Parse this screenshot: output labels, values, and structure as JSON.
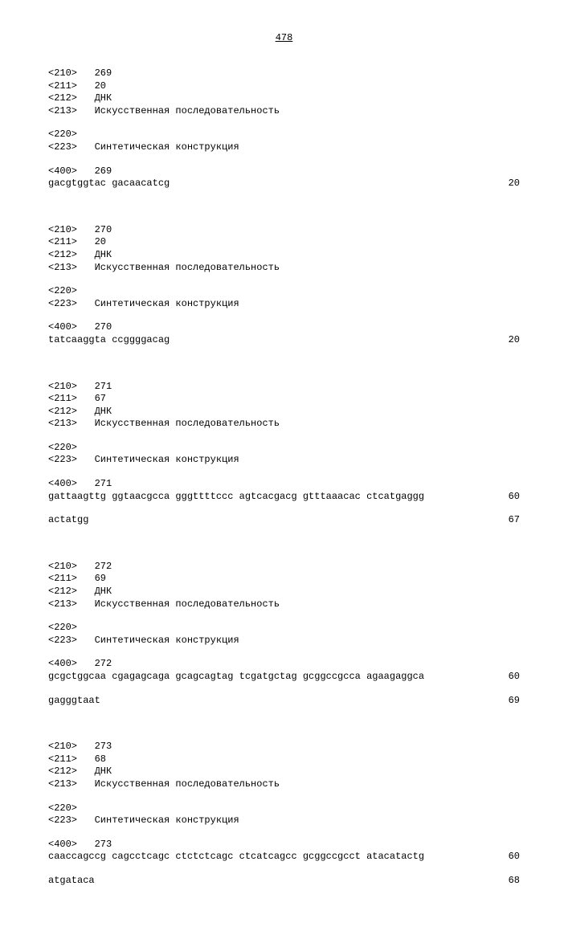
{
  "page_number": "478",
  "entries": [
    {
      "header": [
        {
          "tag": "<210>",
          "val": "269"
        },
        {
          "tag": "<211>",
          "val": "20"
        },
        {
          "tag": "<212>",
          "val": "ДНК"
        },
        {
          "tag": "<213>",
          "val": "Искусственная последовательность"
        }
      ],
      "feature": [
        {
          "tag": "<220>",
          "val": ""
        },
        {
          "tag": "<223>",
          "val": "Синтетическая конструкция"
        }
      ],
      "seq_header": {
        "tag": "<400>",
        "val": "269"
      },
      "seq_lines": [
        {
          "text": "gacgtggtac gacaacatcg",
          "count": "20"
        }
      ]
    },
    {
      "header": [
        {
          "tag": "<210>",
          "val": "270"
        },
        {
          "tag": "<211>",
          "val": "20"
        },
        {
          "tag": "<212>",
          "val": "ДНК"
        },
        {
          "tag": "<213>",
          "val": "Искусственная последовательность"
        }
      ],
      "feature": [
        {
          "tag": "<220>",
          "val": ""
        },
        {
          "tag": "<223>",
          "val": "Синтетическая конструкция"
        }
      ],
      "seq_header": {
        "tag": "<400>",
        "val": "270"
      },
      "seq_lines": [
        {
          "text": "tatcaaggta ccggggacag",
          "count": "20"
        }
      ]
    },
    {
      "header": [
        {
          "tag": "<210>",
          "val": "271"
        },
        {
          "tag": "<211>",
          "val": "67"
        },
        {
          "tag": "<212>",
          "val": "ДНК"
        },
        {
          "tag": "<213>",
          "val": "Искусственная последовательность"
        }
      ],
      "feature": [
        {
          "tag": "<220>",
          "val": ""
        },
        {
          "tag": "<223>",
          "val": "Синтетическая конструкция"
        }
      ],
      "seq_header": {
        "tag": "<400>",
        "val": "271"
      },
      "seq_lines": [
        {
          "text": "gattaagttg ggtaacgcca gggttttccc agtcacgacg gtttaaacac ctcatgaggg",
          "count": "60"
        },
        {
          "text": "actatgg",
          "count": "67"
        }
      ]
    },
    {
      "header": [
        {
          "tag": "<210>",
          "val": "272"
        },
        {
          "tag": "<211>",
          "val": "69"
        },
        {
          "tag": "<212>",
          "val": "ДНК"
        },
        {
          "tag": "<213>",
          "val": "Искусственная последовательность"
        }
      ],
      "feature": [
        {
          "tag": "<220>",
          "val": ""
        },
        {
          "tag": "<223>",
          "val": "Синтетическая конструкция"
        }
      ],
      "seq_header": {
        "tag": "<400>",
        "val": "272"
      },
      "seq_lines": [
        {
          "text": "gcgctggcaa cgagagcaga gcagcagtag tcgatgctag gcggccgcca agaagaggca",
          "count": "60"
        },
        {
          "text": "gagggtaat",
          "count": "69"
        }
      ]
    },
    {
      "header": [
        {
          "tag": "<210>",
          "val": "273"
        },
        {
          "tag": "<211>",
          "val": "68"
        },
        {
          "tag": "<212>",
          "val": "ДНК"
        },
        {
          "tag": "<213>",
          "val": "Искусственная последовательность"
        }
      ],
      "feature": [
        {
          "tag": "<220>",
          "val": ""
        },
        {
          "tag": "<223>",
          "val": "Синтетическая конструкция"
        }
      ],
      "seq_header": {
        "tag": "<400>",
        "val": "273"
      },
      "seq_lines": [
        {
          "text": "caaccagccg cagcctcagc ctctctcagc ctcatcagcc gcggccgcct atacatactg",
          "count": "60"
        },
        {
          "text": "atgataca",
          "count": "68"
        }
      ]
    }
  ]
}
